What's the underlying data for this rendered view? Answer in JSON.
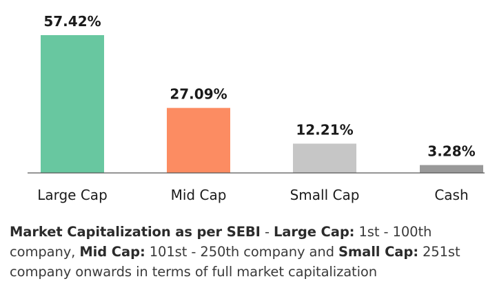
{
  "chart_data": {
    "type": "bar",
    "categories": [
      "Large Cap",
      "Mid Cap",
      "Small Cap",
      "Cash"
    ],
    "values": [
      57.42,
      27.09,
      12.21,
      3.28
    ],
    "value_labels": [
      "57.42%",
      "27.09%",
      "12.21%",
      "3.28%"
    ],
    "colors": [
      "#68c7a0",
      "#fc8c62",
      "#c6c6c6",
      "#999999"
    ],
    "title": "",
    "xlabel": "",
    "ylabel": "",
    "ylim": [
      0,
      57.42
    ],
    "grid": false,
    "legend": "none"
  },
  "footnote": {
    "part1_bold": "Market Capitalization as per SEBI",
    "part2": " - ",
    "part3_bold": "Large Cap:",
    "part4": " 1st - 100th company, ",
    "part5_bold": "Mid Cap:",
    "part6": " 101st - 250th company and ",
    "part7_bold": "Small Cap:",
    "part8": " 251st company onwards in terms of full market capitalization"
  },
  "colors": {
    "baseline": "#555555",
    "text": "#1a1a1a"
  }
}
